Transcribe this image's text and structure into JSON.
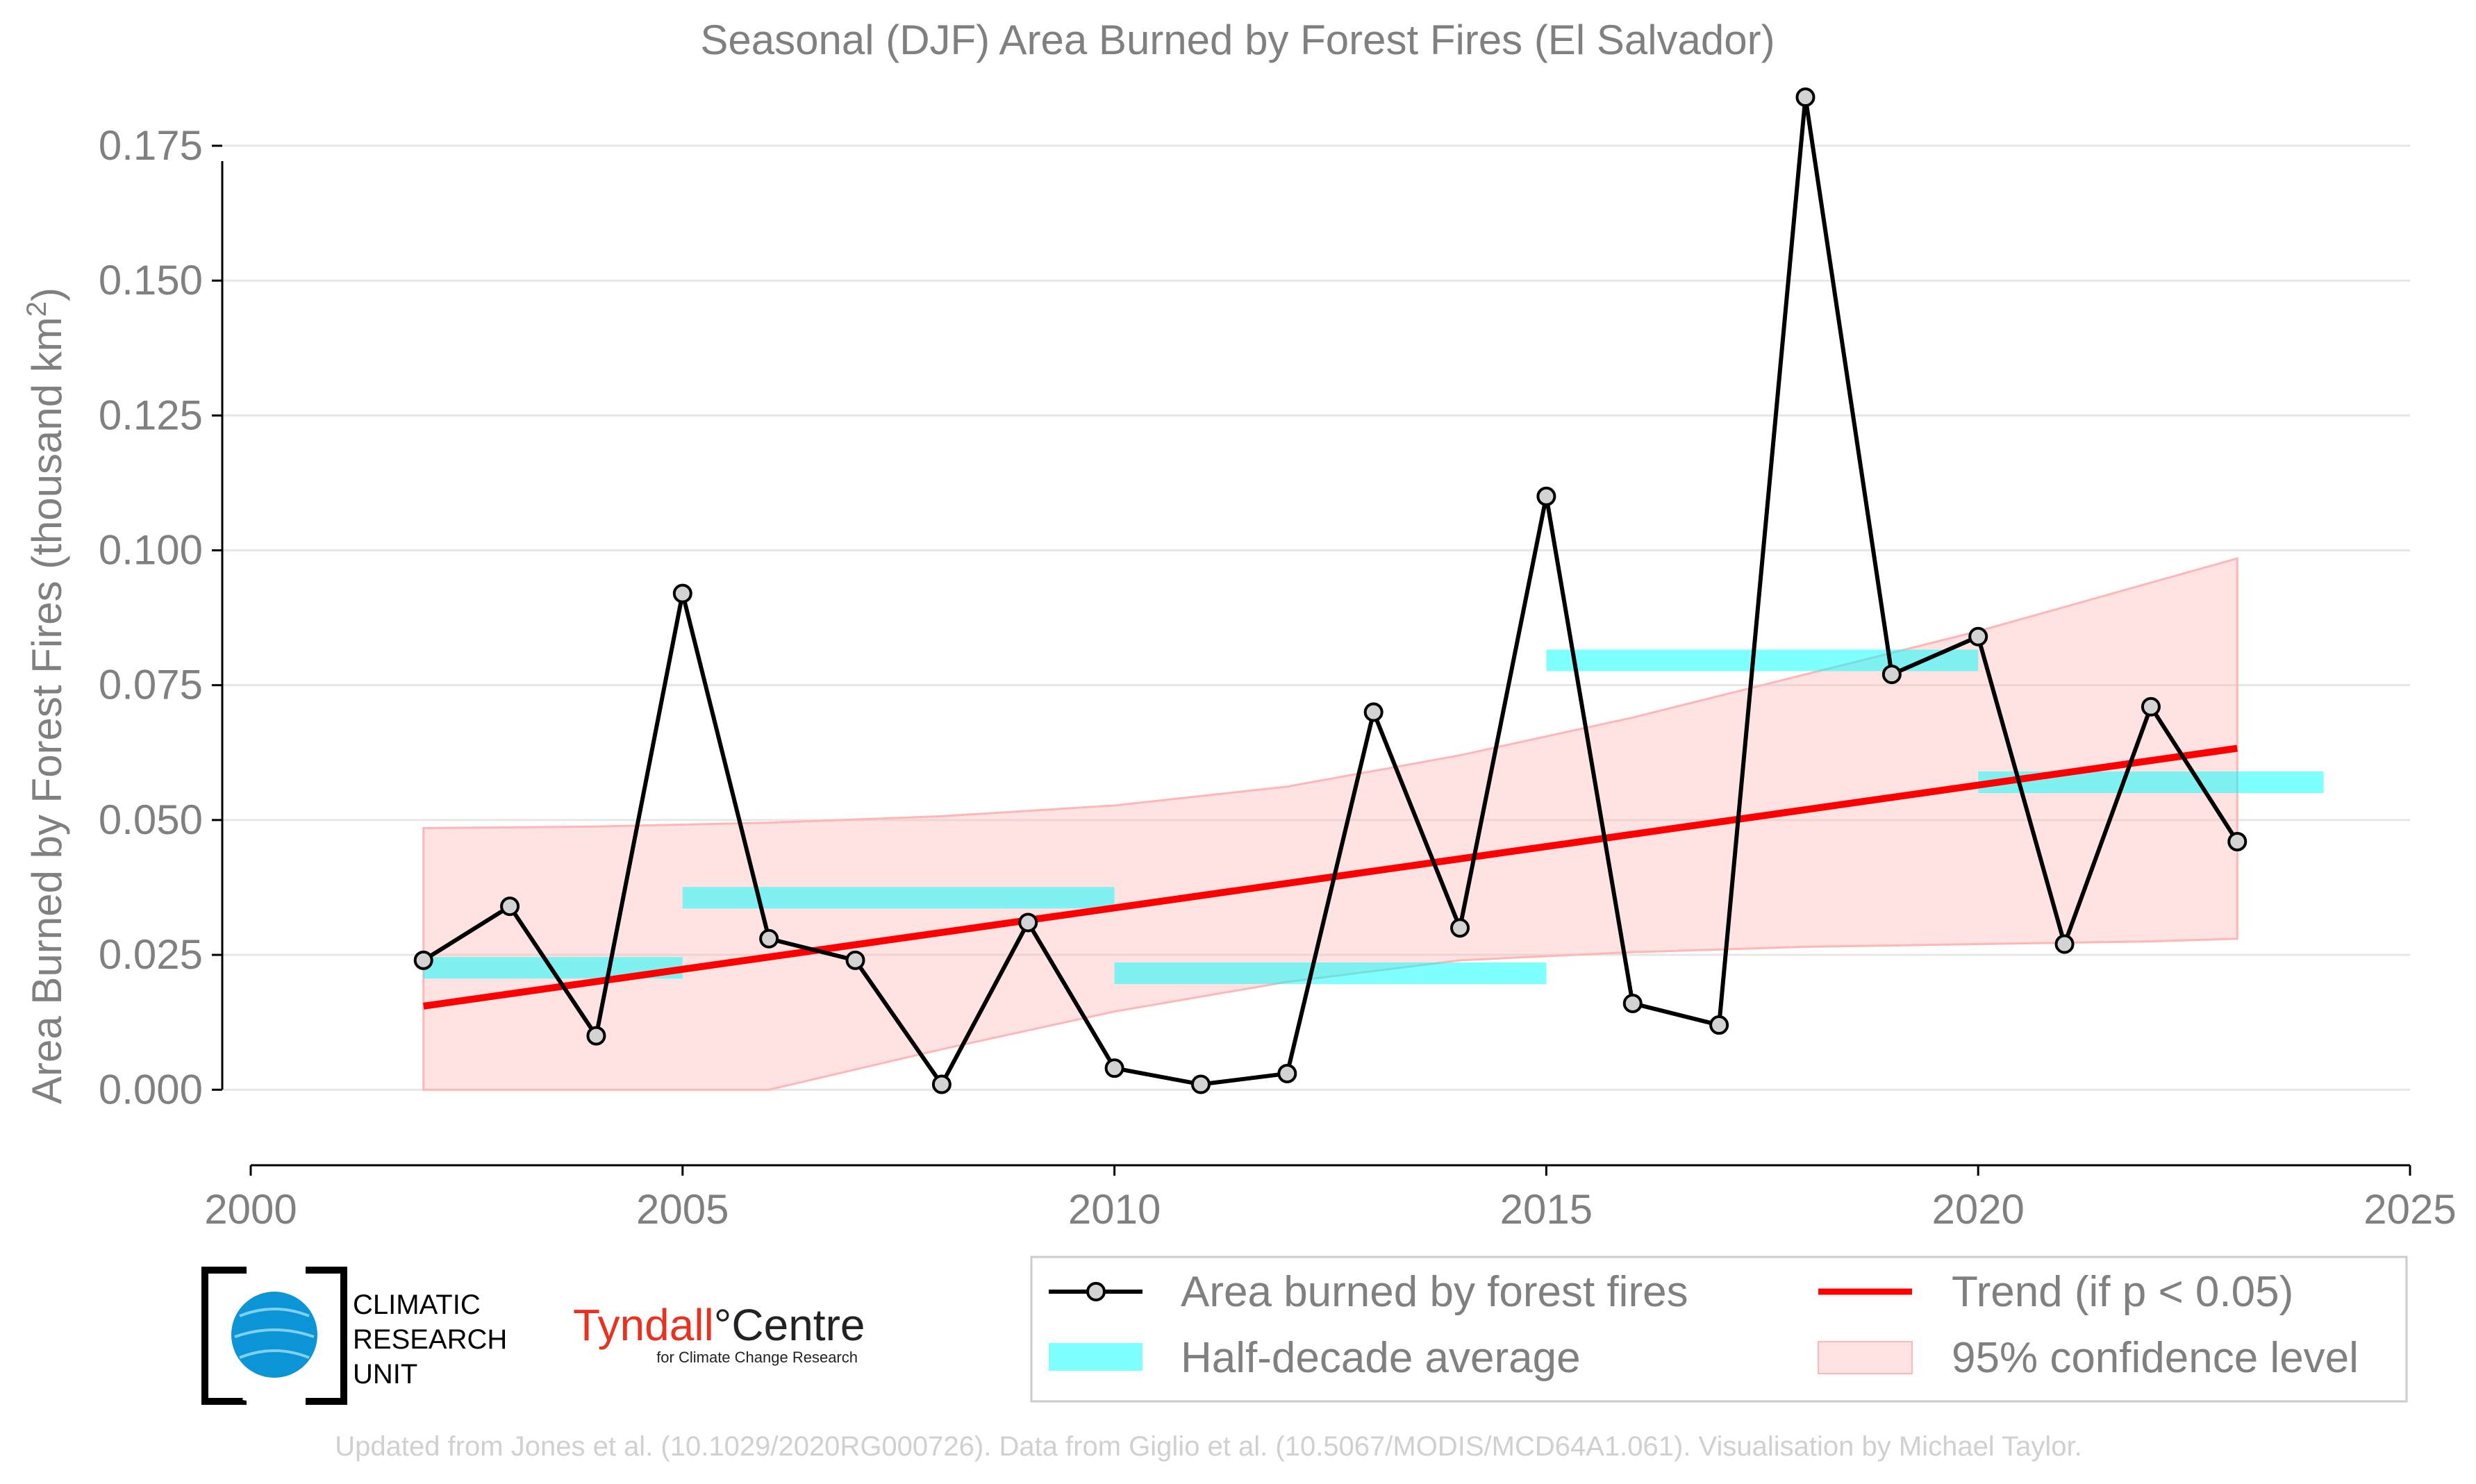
{
  "chart_data": {
    "type": "line",
    "title": "Seasonal (DJF) Area Burned by Forest Fires (El Salvador)",
    "ylabel": "Area Burned by Forest Fires (thousand km",
    "ylabel_sup": "2",
    "ylabel_end": ")",
    "xlim": [
      2000,
      2025
    ],
    "ylim": [
      -0.014,
      0.184
    ],
    "x_ticks": [
      2000,
      2005,
      2010,
      2015,
      2020,
      2025
    ],
    "x_tick_labels": [
      "2000",
      "2005",
      "2010",
      "2015",
      "2020",
      "2025"
    ],
    "y_ticks": [
      0.0,
      0.025,
      0.05,
      0.075,
      0.1,
      0.125,
      0.15,
      0.175
    ],
    "y_tick_labels": [
      "0.000",
      "0.025",
      "0.050",
      "0.075",
      "0.100",
      "0.125",
      "0.150",
      "0.175"
    ],
    "grid": "horizontal",
    "legend_position": "bottom-right",
    "series": [
      {
        "name": "Area burned by forest fires",
        "color": "#000000",
        "marker_fill": "#d3d3d3",
        "x": [
          2002,
          2003,
          2004,
          2005,
          2006,
          2007,
          2008,
          2009,
          2010,
          2011,
          2012,
          2013,
          2014,
          2015,
          2016,
          2017,
          2018,
          2019,
          2020,
          2021,
          2022,
          2023
        ],
        "values": [
          0.024,
          0.034,
          0.01,
          0.092,
          0.028,
          0.024,
          0.001,
          0.031,
          0.004,
          0.001,
          0.003,
          0.07,
          0.03,
          0.11,
          0.016,
          0.012,
          0.184,
          0.077,
          0.084,
          0.027,
          0.071,
          0.046
        ]
      }
    ],
    "half_decade_average": {
      "name": "Half-decade average",
      "color": "#00ffff",
      "segments": [
        {
          "x0": 2002,
          "x1": 2005,
          "value": 0.0226
        },
        {
          "x0": 2005,
          "x1": 2010,
          "value": 0.0356
        },
        {
          "x0": 2010,
          "x1": 2015,
          "value": 0.0216
        },
        {
          "x0": 2015,
          "x1": 2020,
          "value": 0.0796
        },
        {
          "x0": 2020,
          "x1": 2024,
          "value": 0.057
        }
      ]
    },
    "trend": {
      "name": "Trend (if p < 0.05)",
      "color": "#ff0000",
      "x": [
        2002,
        2023
      ],
      "values": [
        0.0155,
        0.0633
      ]
    },
    "confidence_band": {
      "name": "95% confidence level",
      "color": "#ffb6b6",
      "x": [
        2002,
        2004,
        2006,
        2008,
        2010,
        2012,
        2014,
        2016,
        2018,
        2020,
        2022,
        2023
      ],
      "upper": [
        0.0485,
        0.0488,
        0.0495,
        0.0507,
        0.0527,
        0.0562,
        0.062,
        0.069,
        0.077,
        0.085,
        0.094,
        0.0985
      ],
      "lower": [
        -0.018,
        -0.009,
        0.0,
        0.0075,
        0.0145,
        0.02,
        0.024,
        0.0255,
        0.0265,
        0.027,
        0.0275,
        0.028
      ]
    }
  },
  "legend": {
    "items": [
      {
        "label": "Area burned by forest fires",
        "kind": "line-marker"
      },
      {
        "label": "Half-decade average",
        "kind": "band"
      },
      {
        "label": "Trend (if p < 0.05)",
        "kind": "line"
      },
      {
        "label": "95% confidence level",
        "kind": "patch"
      }
    ]
  },
  "logos": {
    "cru": {
      "lines": [
        "CLIMATIC",
        "RESEARCH",
        "UNIT"
      ]
    },
    "tyndall": {
      "main": "Tyndall",
      "degree": "°",
      "centre": "Centre",
      "sub": "for Climate Change Research"
    }
  },
  "credit": "Updated from Jones et al. (10.1029/2020RG000726). Data from Giglio et al. (10.5067/MODIS/MCD64A1.061). Visualisation by Michael Taylor."
}
